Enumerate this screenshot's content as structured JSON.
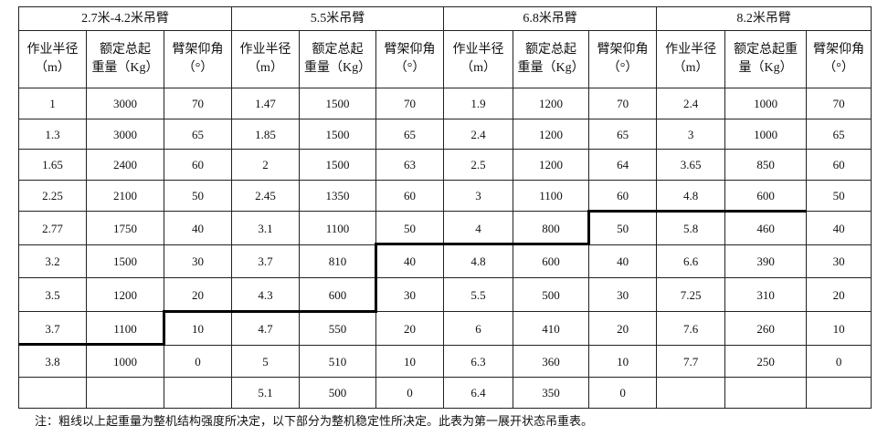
{
  "groups": [
    "2.7米-4.2米吊臂",
    "5.5米吊臂",
    "6.8米吊臂",
    "8.2米吊臂"
  ],
  "column_headers": [
    [
      "作业半径",
      "（m）"
    ],
    [
      "额定总起",
      "重量（Kg）"
    ],
    [
      "臂架仰角",
      "（°）"
    ],
    [
      "作业半径",
      "（m）"
    ],
    [
      "额定总起",
      "重量（Kg）"
    ],
    [
      "臂架仰角",
      "（°）"
    ],
    [
      "作业半径",
      "（m）"
    ],
    [
      "额定总起",
      "重量（Kg）"
    ],
    [
      "臂架仰角",
      "（°）"
    ],
    [
      "作业半径",
      "（m）"
    ],
    [
      "额定总起重",
      "量（Kg）"
    ],
    [
      "臂架仰角",
      "（°）"
    ]
  ],
  "rows": [
    [
      "1",
      "3000",
      "70",
      "1.47",
      "1500",
      "70",
      "1.9",
      "1200",
      "70",
      "2.4",
      "1000",
      "70"
    ],
    [
      "1.3",
      "3000",
      "65",
      "1.85",
      "1500",
      "65",
      "2.4",
      "1200",
      "65",
      "3",
      "1000",
      "65"
    ],
    [
      "1.65",
      "2400",
      "60",
      "2",
      "1500",
      "63",
      "2.5",
      "1200",
      "64",
      "3.65",
      "850",
      "60"
    ],
    [
      "2.25",
      "2100",
      "50",
      "2.45",
      "1350",
      "60",
      "3",
      "1100",
      "60",
      "4.8",
      "600",
      "50"
    ],
    [
      "2.77",
      "1750",
      "40",
      "3.1",
      "1100",
      "50",
      "4",
      "800",
      "50",
      "5.8",
      "460",
      "40"
    ],
    [
      "3.2",
      "1500",
      "30",
      "3.7",
      "810",
      "40",
      "4.8",
      "600",
      "40",
      "6.6",
      "390",
      "30"
    ],
    [
      "3.5",
      "1200",
      "20",
      "4.3",
      "600",
      "30",
      "5.5",
      "500",
      "30",
      "7.25",
      "310",
      "20"
    ],
    [
      "3.7",
      "1100",
      "10",
      "4.7",
      "550",
      "20",
      "6",
      "410",
      "20",
      "7.6",
      "260",
      "10"
    ],
    [
      "3.8",
      "1000",
      "0",
      "5",
      "510",
      "10",
      "6.3",
      "360",
      "10",
      "7.7",
      "250",
      "0"
    ],
    [
      "",
      "",
      "",
      "5.1",
      "500",
      "0",
      "6.4",
      "350",
      "0",
      "",
      "",
      ""
    ]
  ],
  "note": "注：粗线以上起重量为整机结构强度所决定，以下部分为整机稳定性所决定。此表为第一展开状态吊重表。"
}
